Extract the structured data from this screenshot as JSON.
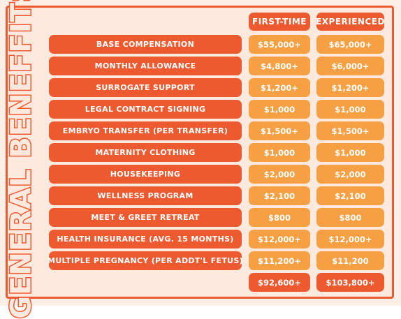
{
  "title": "GENERAL BENEFFITS",
  "columns": {
    "first_time": "FIRST-TIME",
    "experienced": "EXPERIENCED"
  },
  "rows": [
    {
      "label": "BASE COMPENSATION",
      "first_time": "$55,000+",
      "experienced": "$65,000+"
    },
    {
      "label": "MONTHLY ALLOWANCE",
      "first_time": "$4,800+",
      "experienced": "$6,000+"
    },
    {
      "label": "SURROGATE SUPPORT",
      "first_time": "$1,200+",
      "experienced": "$1,200+"
    },
    {
      "label": "LEGAL CONTRACT SIGNING",
      "first_time": "$1,000",
      "experienced": "$1,000"
    },
    {
      "label": "EMBRYO TRANSFER (PER TRANSFER)",
      "first_time": "$1,500+",
      "experienced": "$1,500+"
    },
    {
      "label": "MATERNITY CLOTHING",
      "first_time": "$1,000",
      "experienced": "$1,000"
    },
    {
      "label": "HOUSEKEEPING",
      "first_time": "$2,000",
      "experienced": "$2,000"
    },
    {
      "label": "WELLNESS PROGRAM",
      "first_time": "$2,100",
      "experienced": "$2,100"
    },
    {
      "label": "MEET & GREET RETREAT",
      "first_time": "$800",
      "experienced": "$800"
    },
    {
      "label": "HEALTH INSURANCE (AVG. 15 MONTHS)",
      "first_time": "$12,000+",
      "experienced": "$12,000+"
    },
    {
      "label": "MULTIPLE PREGNANCY (PER ADDT'L FETUS)",
      "first_time": "$11,200+",
      "experienced": "$11,200"
    }
  ],
  "totals": {
    "first_time": "$92,600+",
    "experienced": "$103,800+"
  },
  "colors": {
    "accent_red": "#ee5a2f",
    "accent_orange": "#f6a043",
    "background": "#fde9de"
  }
}
